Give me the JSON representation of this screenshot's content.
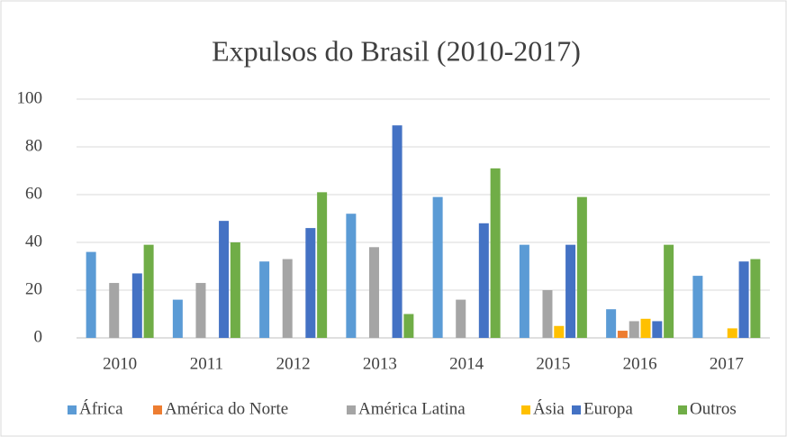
{
  "chart_data": {
    "type": "bar",
    "title": "Expulsos do Brasil (2010-2017)",
    "categories": [
      "2010",
      "2011",
      "2012",
      "2013",
      "2014",
      "2015",
      "2016",
      "2017"
    ],
    "series": [
      {
        "name": "África",
        "color": "#5b9bd5",
        "values": [
          36,
          16,
          32,
          52,
          59,
          39,
          12,
          26
        ]
      },
      {
        "name": "América do Norte",
        "color": "#ed7d31",
        "values": [
          0,
          0,
          0,
          0,
          0,
          0,
          3,
          0
        ]
      },
      {
        "name": "América Latina",
        "color": "#a5a5a5",
        "values": [
          23,
          23,
          33,
          38,
          16,
          20,
          7,
          0
        ]
      },
      {
        "name": "Ásia",
        "color": "#ffc000",
        "values": [
          0,
          0,
          0,
          0,
          0,
          5,
          8,
          4
        ]
      },
      {
        "name": "Europa",
        "color": "#4472c4",
        "values": [
          27,
          49,
          46,
          89,
          48,
          39,
          7,
          32
        ]
      },
      {
        "name": "Outros",
        "color": "#70ad47",
        "values": [
          39,
          40,
          61,
          10,
          71,
          59,
          39,
          33
        ]
      }
    ],
    "ylim": [
      0,
      100
    ],
    "yticks": [
      0,
      20,
      40,
      60,
      80,
      100
    ],
    "grid": true,
    "legend": "bottom"
  }
}
